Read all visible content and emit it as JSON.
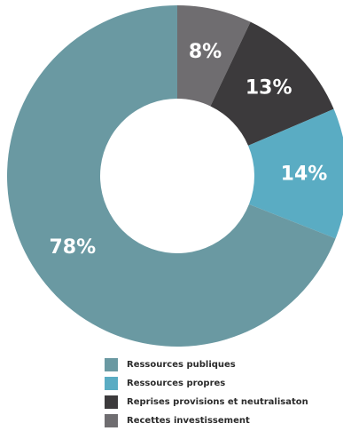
{
  "chart_data": {
    "type": "donut",
    "title": "",
    "slices": [
      {
        "name": "Recettes investissement",
        "value": 8,
        "label": "8%",
        "color": "#6f6d70"
      },
      {
        "name": "Reprises provisions et neutralisaton",
        "value": 13,
        "label": "13%",
        "color": "#3c3a3c"
      },
      {
        "name": "Ressources propres",
        "value": 14,
        "label": "14%",
        "color": "#5aacc3"
      },
      {
        "name": "Ressources publiques",
        "value": 78,
        "label": "78%",
        "color": "#6a99a2"
      }
    ],
    "legend": {
      "placement": "bottom",
      "items": [
        {
          "label": "Ressources publiques",
          "color": "#6a99a2"
        },
        {
          "label": "Ressources propres",
          "color": "#5aacc3"
        },
        {
          "label": "Reprises provisions et neutralisaton",
          "color": "#3c3a3c"
        },
        {
          "label": "Recettes investissement",
          "color": "#6f6d70"
        }
      ]
    }
  }
}
